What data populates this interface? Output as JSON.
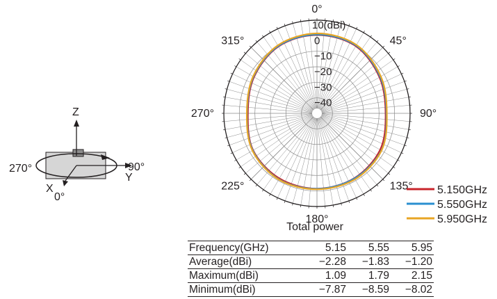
{
  "chart_data": {
    "type": "polar",
    "title": "",
    "caption": "Total power",
    "radial_unit_label": "10(dBi)",
    "radial_ticks": [
      "0",
      "−10",
      "−20",
      "−30",
      "−40"
    ],
    "radial_range": [
      -50,
      10
    ],
    "angle_labels": [
      {
        "deg": 0,
        "text": "0°"
      },
      {
        "deg": 45,
        "text": "45°"
      },
      {
        "deg": 90,
        "text": "90°"
      },
      {
        "deg": 135,
        "text": "135°"
      },
      {
        "deg": 180,
        "text": "180°"
      },
      {
        "deg": 225,
        "text": "225°"
      },
      {
        "deg": 270,
        "text": "270°"
      },
      {
        "deg": 315,
        "text": "315°"
      }
    ],
    "angles_deg": [
      0,
      30,
      60,
      90,
      120,
      150,
      180,
      210,
      240,
      270,
      300,
      330
    ],
    "series": [
      {
        "name": "5.150GHz",
        "color": "#c8242b",
        "values": [
          0.6,
          0.0,
          -3.5,
          -5.8,
          -3.0,
          -1.8,
          -1.5,
          -1.6,
          -2.5,
          -5.5,
          -3.2,
          -0.3
        ]
      },
      {
        "name": "5.550GHz",
        "color": "#2a8fd0",
        "values": [
          0.8,
          0.4,
          -3.0,
          -5.3,
          -2.2,
          -1.6,
          -1.4,
          -1.0,
          -2.3,
          -5.0,
          -2.8,
          0.0
        ]
      },
      {
        "name": "5.950GHz",
        "color": "#e8a524",
        "values": [
          1.5,
          0.9,
          -2.5,
          -5.0,
          -2.0,
          -1.0,
          -1.1,
          -0.8,
          -2.0,
          -4.8,
          -2.5,
          0.5
        ]
      }
    ],
    "legend_position": "bottom-right"
  },
  "axis_diagram": {
    "z_label": "Z",
    "x_label": "X",
    "y_label": "Y",
    "label_0": "0°",
    "label_90": "90°",
    "label_270": "270°"
  },
  "table": {
    "header": {
      "label": "Frequency(GHz)",
      "values": [
        "5.15",
        "5.55",
        "5.95"
      ]
    },
    "rows": [
      {
        "label": "Average(dBi)",
        "values": [
          "−2.28",
          "−1.83",
          "−1.20"
        ]
      },
      {
        "label": "Maximum(dBi)",
        "values": [
          "1.09",
          "1.79",
          "2.15"
        ]
      },
      {
        "label": "Minimum(dBi)",
        "values": [
          "−7.87",
          "−8.59",
          "−8.02"
        ]
      }
    ]
  }
}
